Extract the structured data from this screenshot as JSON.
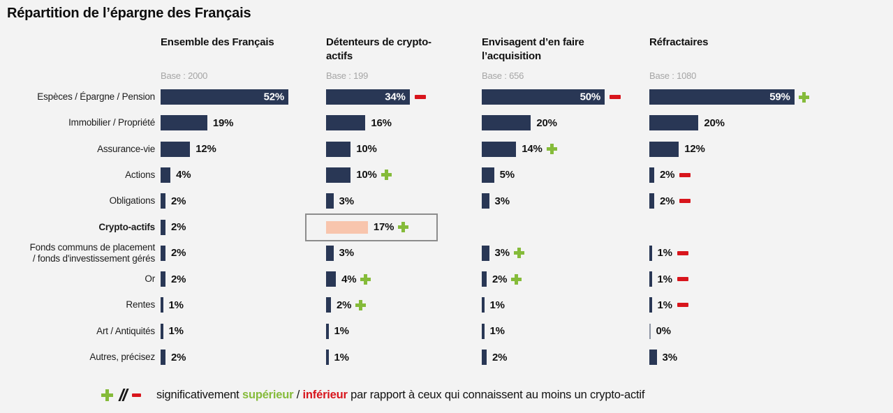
{
  "title": "Répartition de l’épargne des Français",
  "colors": {
    "bar_navy": "#293755",
    "bar_highlight_salmon": "#f8c5ad",
    "plus_green": "#85bb3a",
    "minus_red": "#d8151c",
    "base_text_gray": "#a5a5a5",
    "background": "#f3f3f3",
    "highlight_box_border": "#8c8c8c"
  },
  "chart_data": {
    "type": "bar",
    "orientation": "horizontal",
    "unit": "%",
    "xlim": [
      0,
      60
    ],
    "grid": false,
    "categories": [
      "Espèces / Épargne / Pension",
      "Immobilier / Propriété",
      "Assurance-vie",
      "Actions",
      "Obligations",
      "Crypto-actifs",
      "Fonds communs de placement\n/ fonds d'investissement gérés",
      "Or",
      "Rentes",
      "Art / Antiquités",
      "Autres, précisez"
    ],
    "bold_category_index": 5,
    "series": [
      {
        "name": "Ensemble des Français",
        "base": "Base : 2000",
        "values": [
          52,
          19,
          12,
          4,
          2,
          2,
          2,
          2,
          1,
          1,
          2
        ],
        "flags": [
          null,
          null,
          null,
          null,
          null,
          null,
          null,
          null,
          null,
          null,
          null
        ]
      },
      {
        "name": "Détenteurs de crypto-\nactifs",
        "base": "Base : 199",
        "values": [
          34,
          16,
          10,
          10,
          3,
          17,
          3,
          4,
          2,
          1,
          1
        ],
        "flags": [
          "minus",
          null,
          null,
          "plus",
          null,
          "plus",
          null,
          "plus",
          "plus",
          null,
          null
        ],
        "highlight_index": 5
      },
      {
        "name": "Envisagent d’en faire\nl’acquisition",
        "base": "Base : 656",
        "values": [
          50,
          20,
          14,
          5,
          3,
          null,
          3,
          2,
          1,
          1,
          2
        ],
        "flags": [
          "minus",
          null,
          "plus",
          null,
          null,
          null,
          "plus",
          "plus",
          null,
          null,
          null
        ]
      },
      {
        "name": "Réfractaires",
        "base": "Base : 1080",
        "values": [
          59,
          20,
          12,
          2,
          2,
          null,
          1,
          1,
          1,
          0,
          3
        ],
        "flags": [
          "plus",
          null,
          null,
          "minus",
          "minus",
          null,
          "minus",
          "minus",
          "minus",
          null,
          null
        ]
      }
    ]
  },
  "legend": {
    "text_prefix": "significativement ",
    "superior": "supérieur",
    "separator": " / ",
    "inferior": "inférieur",
    "text_suffix": " par rapport à ceux qui connaissent au moins un crypto-actif"
  }
}
